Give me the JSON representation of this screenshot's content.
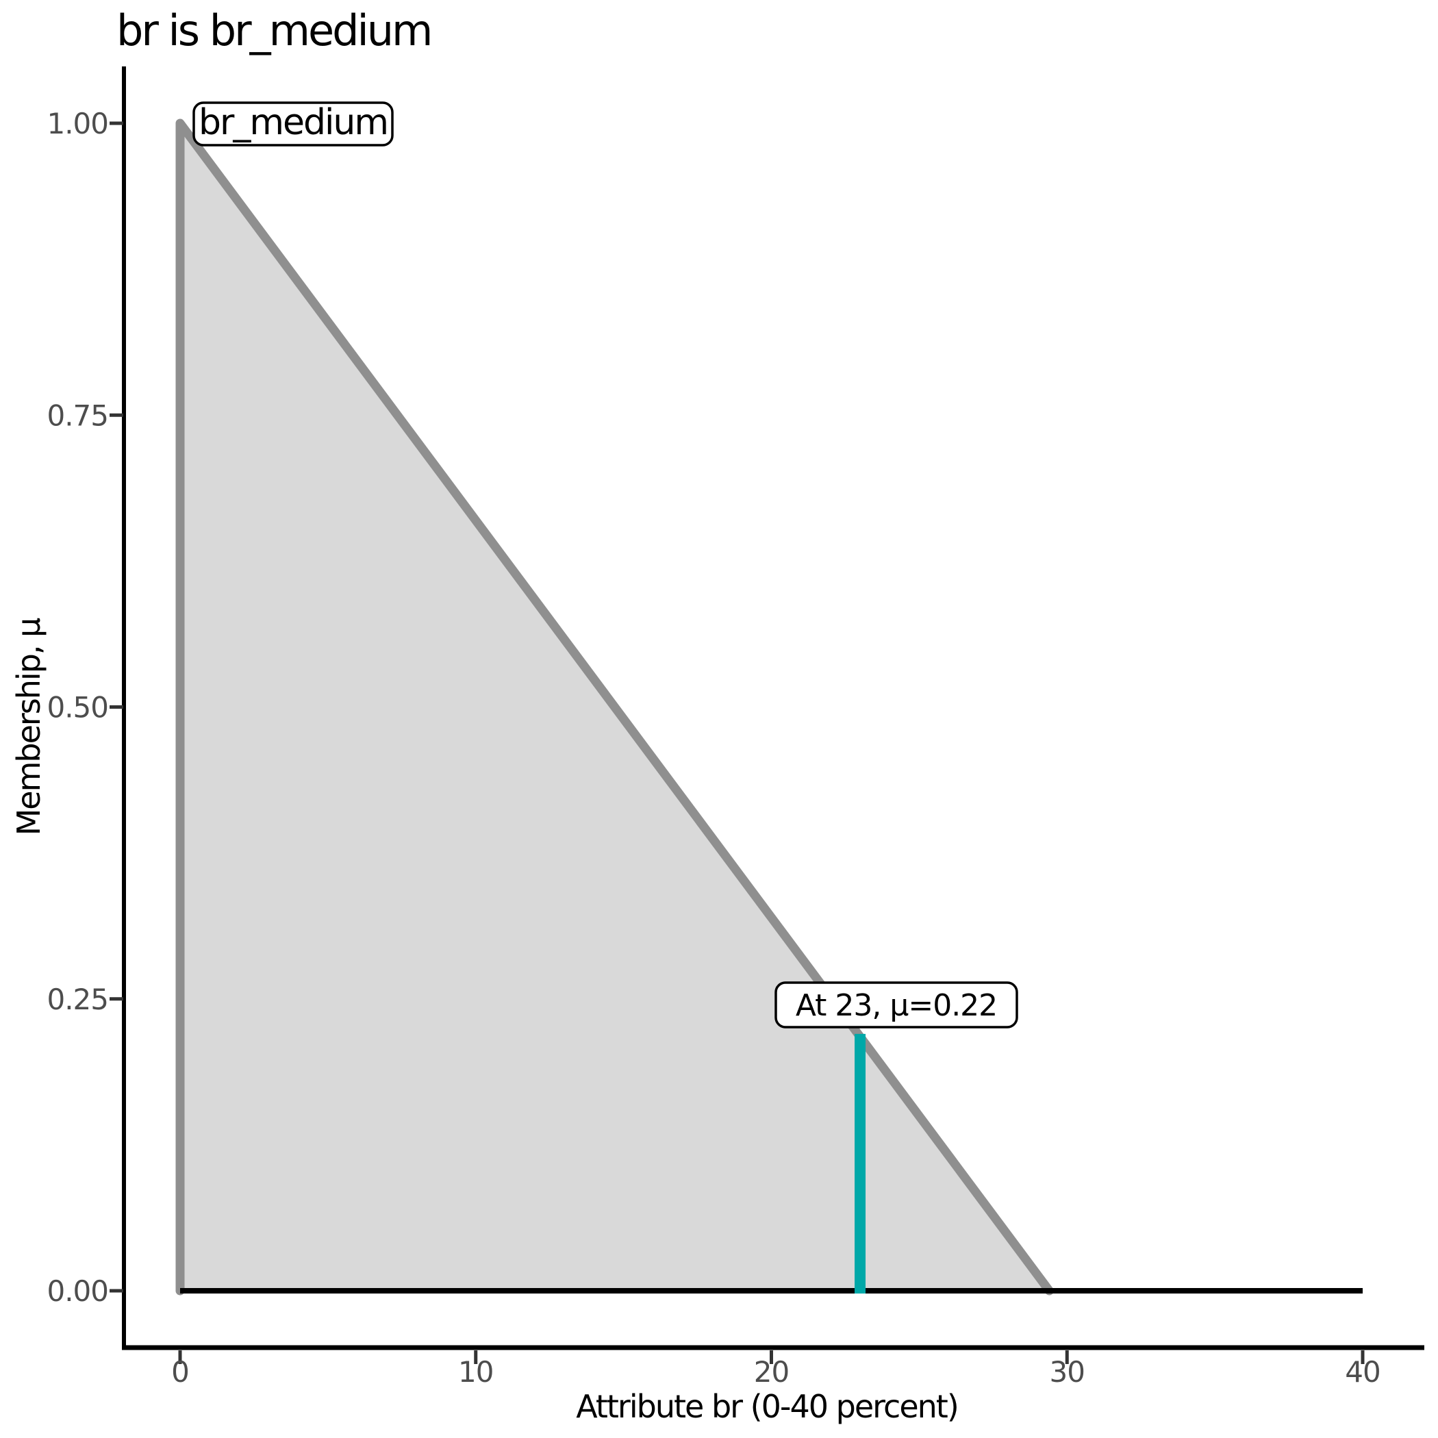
{
  "chart_data": {
    "type": "area",
    "title": "br is br_medium",
    "xlabel": "Attribute br (0-40 percent)",
    "ylabel": "Membership, μ",
    "xlim": [
      0,
      40
    ],
    "ylim": [
      0,
      1
    ],
    "grid": false,
    "legend": false,
    "x_ticks": [
      {
        "v": 0,
        "label": "0"
      },
      {
        "v": 10,
        "label": "10"
      },
      {
        "v": 20,
        "label": "20"
      },
      {
        "v": 30,
        "label": "30"
      },
      {
        "v": 40,
        "label": "40"
      }
    ],
    "y_ticks": [
      {
        "v": 0.0,
        "label": "0.00"
      },
      {
        "v": 0.25,
        "label": "0.25"
      },
      {
        "v": 0.5,
        "label": "0.50"
      },
      {
        "v": 0.75,
        "label": "0.75"
      },
      {
        "v": 1.0,
        "label": "1.00"
      }
    ],
    "series": [
      {
        "name": "br_medium",
        "kind": "triangular_membership_function",
        "points": [
          [
            0,
            0
          ],
          [
            0,
            1
          ],
          [
            29.4,
            0
          ]
        ],
        "baseline_to": 40
      }
    ],
    "annotations": {
      "set_label": "br_medium",
      "crisp": {
        "x": 23,
        "mu": 0.22,
        "label": "At 23, μ=0.22"
      }
    },
    "colors": {
      "area_fill": "#d9d9d9",
      "curve": "#8f8f8f",
      "crisp_line": "#00a8a8",
      "tick_label": "#4d4d4d",
      "tick_mark": "#333333",
      "axis_line": "#000000",
      "baseline": "#000000"
    }
  }
}
